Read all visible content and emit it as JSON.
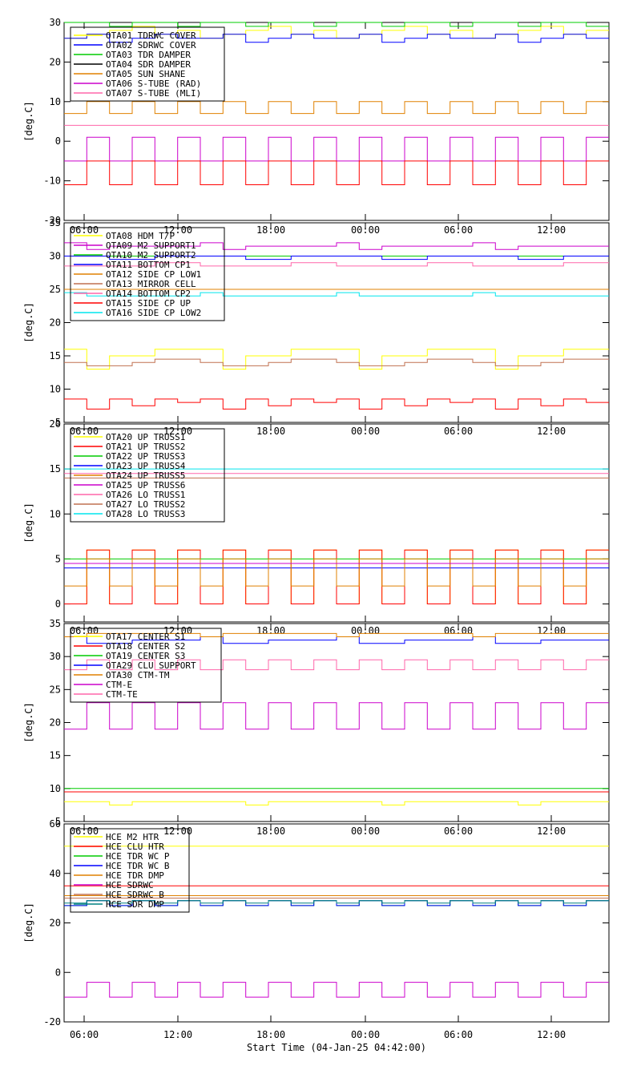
{
  "xlabel": "Start Time (04-Jan-25 04:42:00)",
  "time_ticks": [
    "06:00",
    "12:00",
    "18:00",
    "00:00",
    "06:00",
    "12:00"
  ],
  "chart_data": [
    {
      "type": "line",
      "ylabel": "[deg.C]",
      "ylim": [
        -20,
        30
      ],
      "yticks": [
        -20,
        -10,
        0,
        10,
        20,
        30
      ],
      "xticks_shown": [],
      "legend_placement": "top-left",
      "series": [
        {
          "name": "OTA01 TDRWC COVER",
          "color": "#ffff00",
          "values": [
            26,
            27,
            28,
            29,
            27,
            28
          ]
        },
        {
          "name": "OTA02 SDRWC COVER",
          "color": "#0000ff",
          "values": [
            26,
            27,
            25,
            26,
            27,
            26
          ]
        },
        {
          "name": "OTA03 TDR DAMPER",
          "color": "#00cc00",
          "values": [
            30,
            30,
            29,
            30,
            30,
            29
          ]
        },
        {
          "name": "OTA04 SDR DAMPER",
          "color": "#000000",
          "values": []
        },
        {
          "name": "OTA05 SUN SHANE",
          "color": "#e08000",
          "values": [
            7,
            10,
            7,
            10,
            7,
            10
          ]
        },
        {
          "name": "OTA06 S-TUBE (RAD)",
          "color": "#cc00cc",
          "values": [
            -5,
            1,
            -5,
            1,
            -5,
            1
          ]
        },
        {
          "name": "OTA07 S-TUBE (MLI)",
          "color": "#ff66aa",
          "values": [
            4,
            4,
            4,
            4,
            4,
            4
          ]
        },
        {
          "name": "",
          "color": "#ff0000",
          "values": [
            -11,
            -5,
            -11,
            -5,
            -11,
            -5
          ]
        }
      ]
    },
    {
      "type": "line",
      "ylabel": "[deg.C]",
      "ylim": [
        5,
        35
      ],
      "yticks": [
        5,
        10,
        15,
        20,
        25,
        30,
        35
      ],
      "xticks_shown": [
        "06:00",
        "12:00",
        "18:00",
        "00:00",
        "06:00",
        "12:00"
      ],
      "legend_placement": "top-left",
      "series": [
        {
          "name": "OTA08 HDM T/P",
          "color": "#ffff00",
          "values": [
            16,
            13,
            15,
            15,
            16,
            16
          ]
        },
        {
          "name": "OTA09 M2 SUPPORT1",
          "color": "#cc00cc",
          "values": [
            32,
            31,
            31.5,
            31.5,
            31.5,
            31.5
          ]
        },
        {
          "name": "OTA10 M2 SUPPORT2",
          "color": "#00cc00",
          "values": [
            30,
            30,
            30,
            30,
            30,
            30
          ]
        },
        {
          "name": "OTA11 BOTTOM CP1",
          "color": "#0000ff",
          "values": [
            30,
            30,
            29.5,
            29.5,
            30,
            30
          ]
        },
        {
          "name": "OTA12 SIDE CP LOW1",
          "color": "#e08000",
          "values": [
            25,
            25,
            25,
            25,
            25,
            25
          ]
        },
        {
          "name": "OTA13 MIRROR CELL",
          "color": "#c07050",
          "values": [
            14,
            13.5,
            13.5,
            14,
            14.5,
            14.5
          ]
        },
        {
          "name": "OTA14 BOTTOM CP2",
          "color": "#ff66aa",
          "values": [
            28.5,
            28.5,
            28.5,
            28.5,
            29,
            29
          ]
        },
        {
          "name": "OTA15 SIDE CP UP",
          "color": "#ff0000",
          "values": [
            8.5,
            7,
            8.5,
            7.5,
            8.5,
            8
          ]
        },
        {
          "name": "OTA16 SIDE CP LOW2",
          "color": "#00e5ee",
          "values": [
            24.5,
            24,
            24,
            24,
            24,
            24
          ]
        }
      ]
    },
    {
      "type": "line",
      "ylabel": "[deg.C]",
      "ylim": [
        -2,
        20
      ],
      "yticks": [
        0,
        5,
        10,
        15,
        20
      ],
      "xticks_shown": [
        "06:00",
        "12:00",
        "18:00",
        "00:00",
        "06:00",
        "12:00"
      ],
      "legend_placement": "top-left",
      "series": [
        {
          "name": "OTA20 UP TRUSS1",
          "color": "#ffff00",
          "values": [
            0,
            6,
            0,
            6,
            0,
            6
          ]
        },
        {
          "name": "OTA21 UP TRUSS2",
          "color": "#ff0000",
          "values": [
            0,
            6,
            0,
            6,
            0,
            6
          ]
        },
        {
          "name": "OTA22 UP TRUSS3",
          "color": "#00cc00",
          "values": [
            5,
            5,
            5,
            5,
            5,
            5
          ]
        },
        {
          "name": "OTA23 UP TRUSS4",
          "color": "#0000ff",
          "values": [
            4,
            4,
            4,
            4,
            4,
            4
          ]
        },
        {
          "name": "OTA24 UP TRUSS5",
          "color": "#e08000",
          "values": [
            2,
            5,
            2,
            5,
            2,
            5
          ]
        },
        {
          "name": "OTA25 UP TRUSS6",
          "color": "#cc00cc",
          "values": [
            4.5,
            4.5,
            4.5,
            4.5,
            4.5,
            4.5
          ]
        },
        {
          "name": "OTA26 LO TRUSS1",
          "color": "#ff66aa",
          "values": [
            14.5,
            14.5,
            14.5,
            14.5,
            14.5,
            14.5
          ]
        },
        {
          "name": "OTA27 LO TRUSS2",
          "color": "#c07050",
          "values": [
            14,
            14,
            14,
            14,
            14,
            14
          ]
        },
        {
          "name": "OTA28 LO TRUSS3",
          "color": "#00e5ee",
          "values": [
            15,
            15,
            15,
            15,
            15,
            15
          ]
        }
      ]
    },
    {
      "type": "line",
      "ylabel": "[deg.C]",
      "ylim": [
        5,
        35
      ],
      "yticks": [
        5,
        10,
        15,
        20,
        25,
        30,
        35
      ],
      "xticks_shown": [
        "06:00",
        "12:00",
        "18:00",
        "00:00",
        "06:00",
        "12:00"
      ],
      "legend_placement": "top-left",
      "series": [
        {
          "name": "OTA17 CENTER S1",
          "color": "#ffff00",
          "values": [
            8,
            8,
            7.5,
            8,
            8,
            8
          ]
        },
        {
          "name": "OTA18 CENTER S2",
          "color": "#ff0000",
          "values": [
            9.5,
            9.5,
            9.5,
            9.5,
            9.5,
            9.5
          ]
        },
        {
          "name": "OTA19 CENTER S3",
          "color": "#00cc00",
          "values": [
            10,
            10,
            10,
            10,
            10,
            10
          ]
        },
        {
          "name": "OTA29 CLU SUPPORT",
          "color": "#0000ff",
          "values": [
            33,
            32,
            32,
            32.5,
            32.5,
            32.5
          ]
        },
        {
          "name": "OTA30 CTM-TM",
          "color": "#e08000",
          "values": [
            33,
            33.5,
            33.5,
            33.5,
            33.5,
            33.5
          ]
        },
        {
          "name": "CTM-E",
          "color": "#cc00cc",
          "values": [
            19,
            23,
            19,
            23,
            19,
            23
          ]
        },
        {
          "name": "CTM-TE",
          "color": "#ff66aa",
          "values": [
            28,
            29.5,
            28,
            29.5,
            28,
            29.5
          ]
        }
      ]
    },
    {
      "type": "line",
      "ylabel": "[deg.C]",
      "ylim": [
        -20,
        60
      ],
      "yticks": [
        -20,
        0,
        20,
        40,
        60
      ],
      "xticks_shown": [
        "06:00",
        "12:00",
        "18:00",
        "00:00",
        "06:00",
        "12:00"
      ],
      "legend_placement": "top-left",
      "series": [
        {
          "name": "HCE M2 HTR",
          "color": "#ffff00",
          "values": [
            51,
            51,
            51,
            51,
            51,
            51
          ]
        },
        {
          "name": "HCE CLU HTR",
          "color": "#ff0000",
          "values": [
            35,
            35,
            35,
            35,
            35,
            35
          ]
        },
        {
          "name": "HCE TDR WC P",
          "color": "#00cc00",
          "values": [
            27,
            29,
            27,
            29,
            27,
            29
          ]
        },
        {
          "name": "HCE TDR WC B",
          "color": "#0000ff",
          "values": [
            27,
            29,
            27,
            29,
            27,
            29
          ]
        },
        {
          "name": "HCE TDR DMP",
          "color": "#e08000",
          "values": [
            31,
            31,
            31,
            31,
            31,
            31
          ]
        },
        {
          "name": "HCE SDRWC",
          "color": "#cc00cc",
          "values": [
            -10,
            -4,
            -10,
            -4,
            -10,
            -4
          ]
        },
        {
          "name": "HCE SDRWC B",
          "color": "#c07050",
          "values": [
            30,
            30,
            30,
            30,
            30,
            30
          ]
        },
        {
          "name": "HCE SDR DMP",
          "color": "#008080",
          "values": [
            28,
            29,
            28,
            29,
            28,
            29
          ]
        }
      ]
    }
  ]
}
